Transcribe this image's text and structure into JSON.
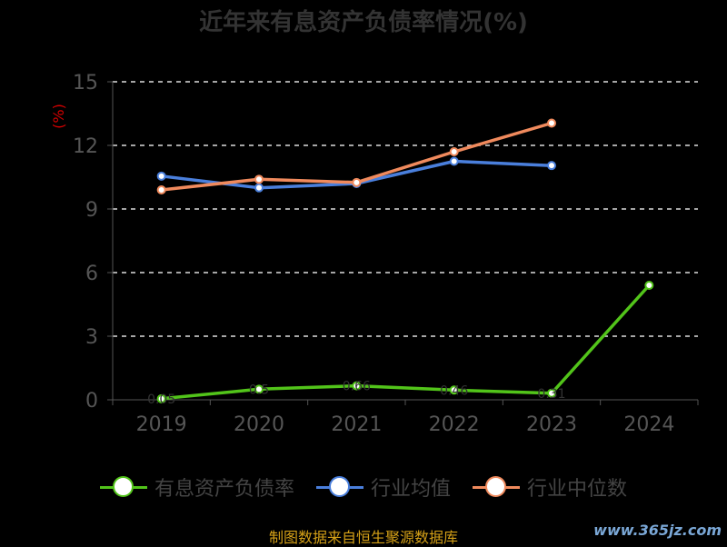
{
  "title": "近年来有息资产负债率情况(%)",
  "source": "制图数据来自恒生聚源数据库",
  "watermark": "www.365jz.com",
  "chart_data": {
    "type": "line",
    "categories": [
      "2019",
      "2020",
      "2021",
      "2022",
      "2023",
      "2024"
    ],
    "ylabel": "(%)",
    "ylim": [
      0,
      15
    ],
    "yticks": [
      0,
      3,
      6,
      9,
      12,
      15
    ],
    "grid": true,
    "legend_position": "bottom",
    "series": [
      {
        "name": "有息资产负债率",
        "color": "#52c41a",
        "values": [
          0.05,
          0.5,
          0.66,
          0.46,
          0.31,
          5.4
        ],
        "labels": [
          "0.05",
          "0.5",
          "0.66",
          "0.46",
          "0.31",
          ""
        ]
      },
      {
        "name": "行业均值",
        "color": "#4a7fdc",
        "values": [
          10.55,
          10.0,
          10.2,
          11.25,
          11.05,
          null
        ]
      },
      {
        "name": "行业中位数",
        "color": "#f08a5d",
        "values": [
          9.9,
          10.4,
          10.25,
          11.7,
          13.05,
          null
        ]
      }
    ]
  }
}
